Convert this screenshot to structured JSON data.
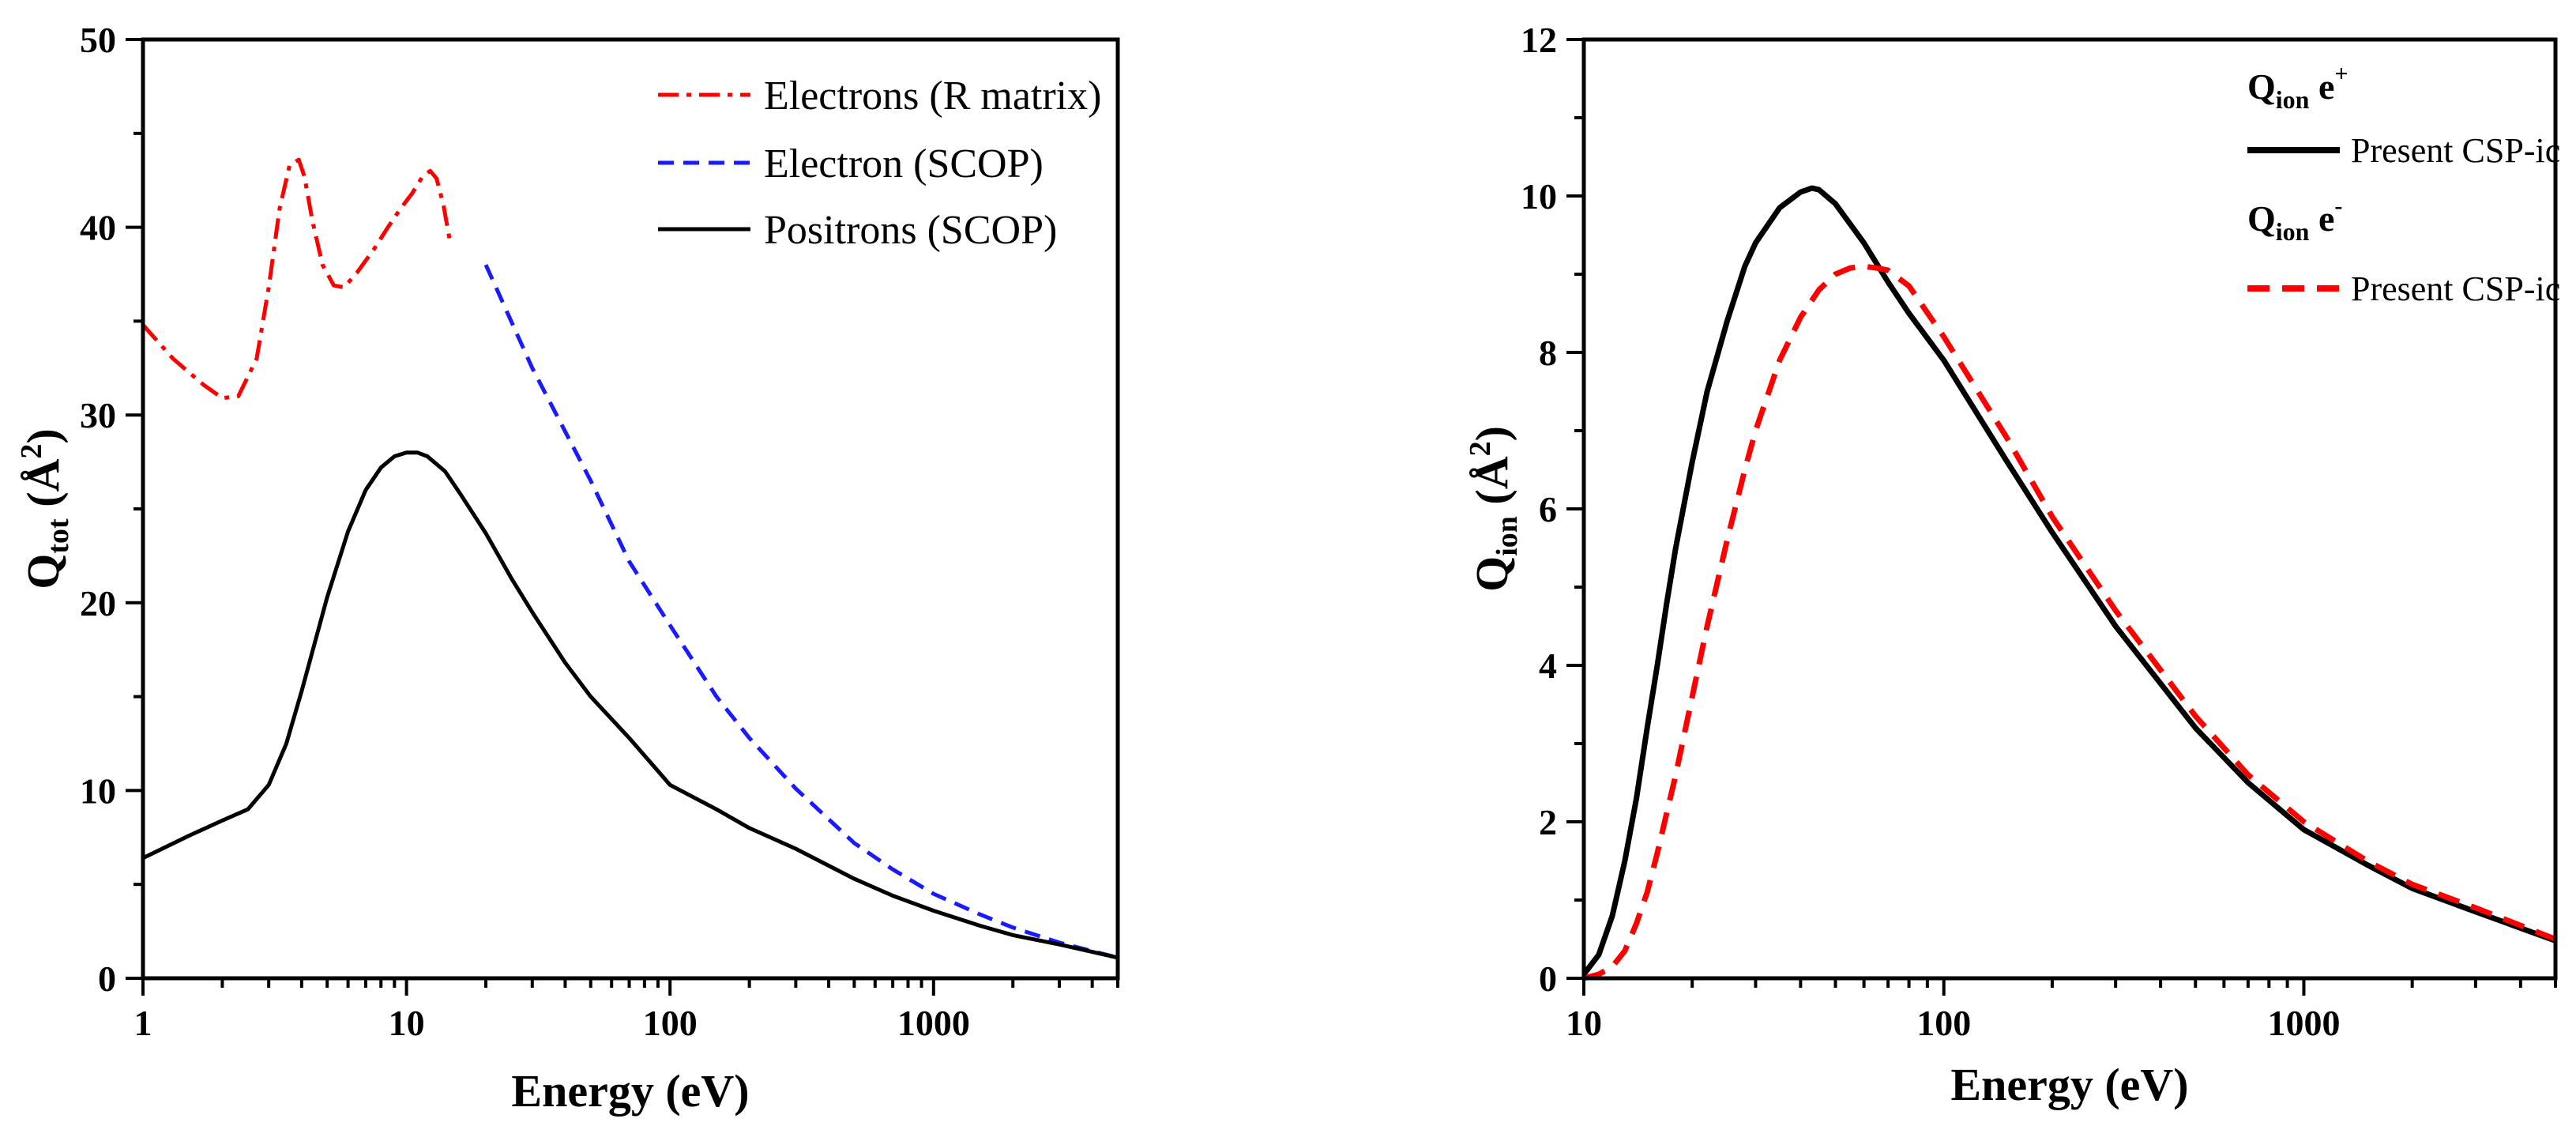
{
  "chart_data": [
    {
      "type": "line",
      "xscale": "log",
      "xlim": [
        1,
        5000
      ],
      "ylim": [
        0,
        50
      ],
      "xticks": [
        1,
        10,
        100,
        1000
      ],
      "xtick_labels": [
        "1",
        "10",
        "100",
        "1000"
      ],
      "yticks": [
        0,
        10,
        20,
        30,
        40,
        50
      ],
      "ytick_labels": [
        "0",
        "10",
        "20",
        "30",
        "40",
        "50"
      ],
      "xlabel": "Energy (eV)",
      "ylabel": {
        "main": "Q",
        "sub": "tot",
        "rest": " (Å",
        "sup": "2",
        "close": ")"
      },
      "legend_position": "top-right",
      "series": [
        {
          "name": "Electrons (R matrix)",
          "color": "#ff0000",
          "style": "dashdot",
          "x": [
            1,
            1.3,
            1.7,
            2.0,
            2.3,
            2.7,
            3.0,
            3.3,
            3.6,
            3.9,
            4.1,
            4.4,
            4.8,
            5.3,
            5.8,
            6.5,
            7.5,
            8.5,
            9.5,
            10.5,
            11.5,
            12.3,
            13.0,
            13.8,
            14.6
          ],
          "y": [
            34.8,
            33.0,
            31.6,
            30.9,
            31.0,
            33.0,
            36.8,
            41.0,
            43.3,
            43.6,
            42.7,
            40.3,
            38.0,
            36.9,
            36.8,
            37.6,
            38.8,
            40.0,
            41.0,
            41.8,
            42.7,
            43.0,
            42.6,
            41.2,
            39.3
          ]
        },
        {
          "name": "Electron (SCOP)",
          "color": "#1a1aff",
          "style": "dashed",
          "x": [
            20,
            30,
            50,
            70,
            100,
            150,
            200,
            300,
            500,
            700,
            1000,
            1500,
            2000,
            3000,
            5000
          ],
          "y": [
            38.0,
            32.5,
            26.5,
            22.2,
            18.8,
            15.0,
            12.8,
            10.1,
            7.2,
            5.8,
            4.5,
            3.4,
            2.7,
            1.9,
            1.1
          ]
        },
        {
          "name": "Positrons (SCOP)",
          "color": "#000000",
          "style": "solid",
          "x": [
            1,
            1.5,
            2,
            2.5,
            3,
            3.5,
            4,
            5,
            6,
            7,
            8,
            9,
            10,
            11,
            12,
            14,
            16,
            20,
            25,
            30,
            40,
            50,
            70,
            100,
            150,
            200,
            300,
            500,
            700,
            1000,
            1500,
            2000,
            3000,
            5000
          ],
          "y": [
            6.4,
            7.6,
            8.4,
            9.0,
            10.3,
            12.5,
            15.3,
            20.3,
            23.8,
            26.0,
            27.2,
            27.8,
            28.0,
            28.0,
            27.8,
            27.0,
            25.8,
            23.7,
            21.3,
            19.5,
            16.8,
            15.0,
            12.8,
            10.3,
            9.0,
            8.0,
            6.9,
            5.3,
            4.4,
            3.6,
            2.8,
            2.3,
            1.8,
            1.1
          ]
        }
      ]
    },
    {
      "type": "line",
      "xscale": "log",
      "xlim": [
        10,
        5000
      ],
      "ylim": [
        0,
        12
      ],
      "xticks": [
        10,
        100,
        1000
      ],
      "xtick_labels": [
        "10",
        "100",
        "1000"
      ],
      "yticks": [
        0,
        2,
        4,
        6,
        8,
        10,
        12
      ],
      "ytick_labels": [
        "0",
        "2",
        "4",
        "6",
        "8",
        "10",
        "12"
      ],
      "xlabel": "Energy (eV)",
      "ylabel": {
        "main": "Q",
        "sub": "ion",
        "rest": " (Å",
        "sup": "2",
        "close": ")"
      },
      "legend_position": "top-right",
      "legend_groups": [
        {
          "head": "Q",
          "head_sub": "ion",
          "head_rest": " e",
          "head_sup": "+",
          "label": "Present CSP-ic"
        },
        {
          "head": "Q",
          "head_sub": "ion",
          "head_rest": " e",
          "head_sup": "-",
          "label": "Present CSP-ic"
        }
      ],
      "series": [
        {
          "name": "Positron Present CSP-ic",
          "color": "#000000",
          "style": "solid",
          "x": [
            10,
            11,
            12,
            13,
            14,
            15,
            16,
            17,
            18,
            20,
            22,
            25,
            28,
            30,
            35,
            40,
            43,
            45,
            50,
            60,
            70,
            80,
            100,
            150,
            200,
            300,
            500,
            700,
            1000,
            1500,
            2000,
            3000,
            5000
          ],
          "y": [
            0.05,
            0.3,
            0.8,
            1.5,
            2.3,
            3.2,
            4.0,
            4.8,
            5.5,
            6.6,
            7.5,
            8.4,
            9.1,
            9.4,
            9.85,
            10.05,
            10.1,
            10.08,
            9.9,
            9.4,
            8.9,
            8.5,
            7.9,
            6.6,
            5.7,
            4.5,
            3.2,
            2.5,
            1.9,
            1.45,
            1.15,
            0.85,
            0.48
          ]
        },
        {
          "name": "Electron Present CSP-ic",
          "color": "#ff0000",
          "style": "dashed",
          "x": [
            10,
            11,
            12,
            13,
            14,
            15,
            16,
            18,
            20,
            22,
            25,
            28,
            30,
            35,
            40,
            45,
            50,
            55,
            60,
            65,
            70,
            80,
            100,
            150,
            200,
            300,
            500,
            700,
            1000,
            1500,
            2000,
            3000,
            5000
          ],
          "y": [
            0.0,
            0.05,
            0.15,
            0.35,
            0.7,
            1.1,
            1.6,
            2.6,
            3.6,
            4.5,
            5.6,
            6.5,
            7.0,
            7.9,
            8.45,
            8.8,
            9.0,
            9.08,
            9.1,
            9.08,
            9.05,
            8.85,
            8.2,
            6.9,
            5.9,
            4.7,
            3.35,
            2.6,
            2.0,
            1.5,
            1.2,
            0.9,
            0.5
          ]
        }
      ]
    }
  ]
}
